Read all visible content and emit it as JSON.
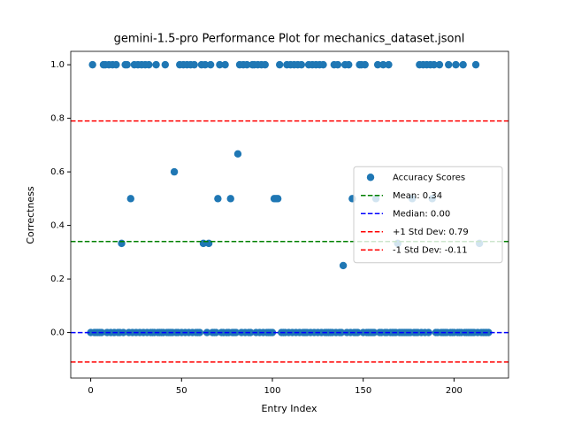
{
  "chart_data": {
    "type": "scatter",
    "title": "gemini-1.5-pro Performance Plot for mechanics_dataset.jsonl",
    "x_label": "Entry Index",
    "y_label": "Correctness",
    "xlim": [
      -11,
      230
    ],
    "ylim": [
      -0.17,
      1.05
    ],
    "xticks": [
      0,
      50,
      100,
      150,
      200
    ],
    "yticks": [
      {
        "value": 0,
        "label": "0.0"
      },
      0.2,
      0.4,
      0.6,
      0.8,
      {
        "value": 1,
        "label": "1.0"
      }
    ],
    "legend_position": "center right",
    "series": [
      {
        "name": "Accuracy Scores",
        "color": "#1f77b4",
        "x": [
          0,
          1,
          2,
          3,
          4,
          5,
          6,
          7,
          8,
          9,
          10,
          11,
          12,
          13,
          14,
          15,
          16,
          17,
          18,
          19,
          20,
          21,
          22,
          23,
          24,
          25,
          26,
          27,
          28,
          29,
          30,
          31,
          32,
          33,
          34,
          35,
          36,
          37,
          38,
          39,
          40,
          41,
          42,
          43,
          44,
          45,
          46,
          47,
          48,
          49,
          50,
          51,
          52,
          53,
          54,
          55,
          56,
          57,
          58,
          59,
          60,
          61,
          62,
          63,
          64,
          65,
          66,
          67,
          68,
          69,
          70,
          71,
          72,
          73,
          74,
          75,
          76,
          77,
          78,
          79,
          80,
          81,
          82,
          83,
          84,
          85,
          86,
          87,
          88,
          89,
          90,
          91,
          92,
          93,
          94,
          95,
          96,
          97,
          98,
          99,
          100,
          101,
          102,
          103,
          104,
          105,
          106,
          107,
          108,
          109,
          110,
          111,
          112,
          113,
          114,
          115,
          116,
          117,
          118,
          119,
          120,
          121,
          122,
          123,
          124,
          125,
          126,
          127,
          128,
          129,
          130,
          131,
          132,
          133,
          134,
          135,
          136,
          137,
          138,
          139,
          140,
          141,
          142,
          143,
          144,
          145,
          146,
          147,
          148,
          149,
          150,
          151,
          152,
          153,
          154,
          155,
          156,
          157,
          158,
          159,
          160,
          161,
          162,
          163,
          164,
          165,
          166,
          167,
          168,
          169,
          170,
          171,
          172,
          173,
          174,
          175,
          176,
          177,
          178,
          179,
          180,
          181,
          182,
          183,
          184,
          185,
          186,
          187,
          188,
          189,
          190,
          191,
          192,
          193,
          194,
          195,
          196,
          197,
          198,
          199,
          200,
          201,
          202,
          203,
          204,
          205,
          206,
          207,
          208,
          209,
          210,
          211,
          212,
          213,
          214,
          215,
          216,
          217,
          218,
          219
        ],
        "values": [
          0,
          1,
          0,
          0,
          0,
          0,
          0,
          1,
          1,
          0,
          1,
          0,
          1,
          0,
          1,
          0,
          0,
          0.333,
          0,
          1,
          1,
          0,
          0.5,
          0,
          1,
          0,
          1,
          0,
          1,
          0,
          1,
          0,
          1,
          0,
          0,
          0,
          1,
          0,
          0,
          0,
          0,
          1,
          0,
          0,
          0,
          0,
          0.6,
          0,
          0,
          1,
          0,
          1,
          0,
          1,
          0,
          1,
          0,
          1,
          0,
          0,
          0,
          1,
          0.333,
          1,
          0,
          0.333,
          1,
          0,
          0,
          0,
          0.5,
          1,
          0,
          0,
          1,
          0,
          0,
          0.5,
          0,
          0,
          0,
          0.667,
          1,
          0,
          1,
          0,
          1,
          0,
          0,
          1,
          1,
          0,
          1,
          0,
          1,
          0,
          1,
          0,
          0,
          0,
          0,
          0.5,
          0.5,
          0.5,
          1,
          0,
          0,
          0,
          1,
          0,
          1,
          0,
          1,
          0,
          1,
          0,
          1,
          0,
          0,
          0,
          1,
          0,
          1,
          0,
          1,
          0,
          1,
          0,
          1,
          0,
          0,
          0,
          0,
          0,
          1,
          0,
          1,
          0,
          0,
          0.25,
          1,
          0,
          1,
          0,
          0.5,
          0,
          0,
          0,
          1,
          1,
          0,
          1,
          0,
          0,
          0,
          0,
          0,
          0.5,
          1,
          0,
          0,
          1,
          0,
          0,
          1,
          0,
          0,
          0,
          0,
          0.333,
          0,
          0,
          0,
          0,
          0,
          0,
          0,
          0.5,
          0,
          0,
          0,
          1,
          0,
          1,
          0,
          1,
          0,
          1,
          0.5,
          1,
          0,
          0,
          1,
          0,
          0,
          0,
          0,
          1,
          0,
          0,
          0,
          1,
          0,
          0,
          0,
          1,
          0,
          0,
          0,
          0,
          0,
          0,
          1,
          0,
          0.333,
          0,
          0,
          0,
          0,
          0
        ]
      }
    ],
    "reference_lines": [
      {
        "name": "Mean: 0.34",
        "value": 0.34,
        "color": "green"
      },
      {
        "name": "Median: 0.00",
        "value": 0,
        "color": "blue"
      },
      {
        "name": "+1 Std Dev: 0.79",
        "value": 0.79,
        "color": "red"
      },
      {
        "name": "-1 Std Dev: -0.11",
        "value": -0.11,
        "color": "red"
      }
    ]
  }
}
